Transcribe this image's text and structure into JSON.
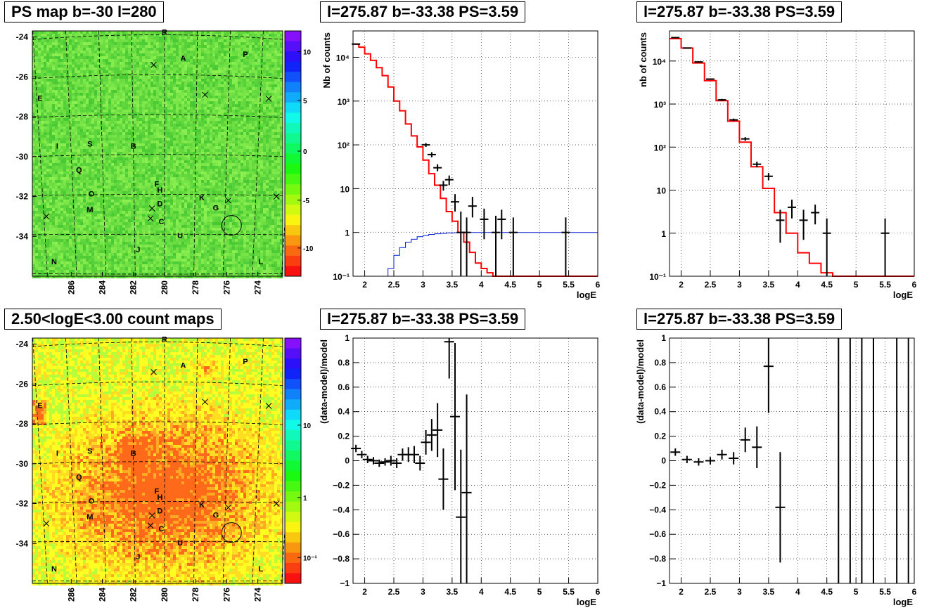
{
  "pads": [
    {
      "title": "PS map b=-30 l=280",
      "kind": "map",
      "palette": "green",
      "y_ticks": [
        "-24",
        "-26",
        "-28",
        "-30",
        "-32",
        "-34"
      ],
      "x_ticks": [
        "286",
        "284",
        "282",
        "280",
        "278",
        "276",
        "274"
      ],
      "colorbar_ticks": [
        "10",
        "5",
        "0",
        "-5",
        "-10"
      ]
    },
    {
      "title": "l=275.87 b=-33.38 PS=3.59",
      "kind": "spectrum",
      "ylabel": "Nb of counts",
      "xlabel": "logE",
      "with_blue_curve": true,
      "data_key": 0
    },
    {
      "title": "l=275.87 b=-33.38 PS=3.59",
      "kind": "spectrum",
      "ylabel": "nb of counts",
      "xlabel": "logE",
      "with_blue_curve": false,
      "data_key": 1
    },
    {
      "title": "2.50<logE<3.00 count maps",
      "kind": "map",
      "palette": "hot",
      "y_ticks": [
        "-24",
        "-26",
        "-28",
        "-30",
        "-32",
        "-34"
      ],
      "x_ticks": [
        "286",
        "284",
        "282",
        "280",
        "278",
        "276",
        "274"
      ],
      "colorbar_ticks": [
        "10",
        "1",
        "10⁻¹"
      ]
    },
    {
      "title": "l=275.87 b=-33.38 PS=3.59",
      "kind": "residual",
      "ylabel": "(data-model)/model",
      "xlabel": "logE",
      "data_key": 2
    },
    {
      "title": "l=275.87 b=-33.38 PS=3.59",
      "kind": "residual",
      "ylabel": "(data-model)/model",
      "xlabel": "logE",
      "data_key": 3
    }
  ],
  "map_labels": [
    {
      "text": "R",
      "l": 280.0,
      "b": -23.9
    },
    {
      "text": "A",
      "l": 278.8,
      "b": -25.2
    },
    {
      "text": "P",
      "l": 274.8,
      "b": -25.0
    },
    {
      "text": "E",
      "l": 288.0,
      "b": -27.2
    },
    {
      "text": "I",
      "l": 286.9,
      "b": -29.6
    },
    {
      "text": "S",
      "l": 284.8,
      "b": -29.5
    },
    {
      "text": "B",
      "l": 282.0,
      "b": -29.6
    },
    {
      "text": "Q",
      "l": 285.5,
      "b": -30.8
    },
    {
      "text": "F",
      "l": 280.5,
      "b": -31.5
    },
    {
      "text": "H",
      "l": 280.3,
      "b": -31.8
    },
    {
      "text": "O",
      "l": 284.7,
      "b": -32.0
    },
    {
      "text": "K",
      "l": 277.6,
      "b": -32.2
    },
    {
      "text": "D",
      "l": 280.3,
      "b": -32.5
    },
    {
      "text": "M",
      "l": 284.8,
      "b": -32.8
    },
    {
      "text": "G",
      "l": 276.7,
      "b": -32.7
    },
    {
      "text": "C",
      "l": 280.2,
      "b": -33.4
    },
    {
      "text": "U",
      "l": 279.0,
      "b": -34.1
    },
    {
      "text": "J",
      "l": 281.7,
      "b": -34.8
    },
    {
      "text": "N",
      "l": 287.1,
      "b": -35.4
    },
    {
      "text": "L",
      "l": 273.8,
      "b": -35.4
    }
  ],
  "map_crosses": [
    {
      "l": 280.7,
      "b": -25.4
    },
    {
      "l": 277.4,
      "b": -26.9
    },
    {
      "l": 273.3,
      "b": -27.1
    },
    {
      "l": 280.8,
      "b": -32.6
    },
    {
      "l": 280.9,
      "b": -33.1
    },
    {
      "l": 275.9,
      "b": -32.2
    },
    {
      "l": 287.6,
      "b": -33.0
    },
    {
      "l": 272.8,
      "b": -32.0
    }
  ],
  "source_circle": {
    "l": 275.87,
    "b": -33.38
  },
  "chart_data": [
    {
      "type": "line",
      "title": "l=275.87 b=-33.38 PS=3.59",
      "xlabel": "logE",
      "ylabel": "Nb of counts",
      "xlim": [
        1.8,
        6
      ],
      "ylim": [
        0.1,
        40000
      ],
      "yscale": "log",
      "grid": true,
      "model_steps": {
        "edges": [
          1.8,
          1.9,
          2.0,
          2.1,
          2.2,
          2.3,
          2.4,
          2.5,
          2.6,
          2.7,
          2.8,
          2.9,
          3.0,
          3.1,
          3.2,
          3.3,
          3.4,
          3.5,
          3.6,
          3.7,
          3.8,
          3.9,
          4.0,
          4.1,
          4.2,
          4.3,
          4.4,
          6.0
        ],
        "values": [
          20000,
          17000,
          12000,
          8500,
          5800,
          3800,
          2100,
          1000,
          600,
          300,
          160,
          90,
          45,
          22,
          12,
          6,
          3,
          1.8,
          1.0,
          0.6,
          0.35,
          0.2,
          0.15,
          0.12,
          0.1,
          0.09,
          0.08
        ]
      },
      "blue_steps": {
        "edges": [
          1.8,
          2.3,
          2.4,
          2.5,
          2.6,
          2.7,
          2.8,
          2.9,
          3.0,
          3.1,
          3.2,
          3.3,
          3.4,
          3.5,
          3.6,
          3.7,
          3.8,
          4.0,
          6.0
        ],
        "values": [
          0.07,
          0.1,
          0.15,
          0.3,
          0.45,
          0.6,
          0.7,
          0.8,
          0.85,
          0.9,
          0.93,
          0.95,
          0.97,
          0.98,
          0.99,
          1.0,
          1.0,
          1.0
        ]
      },
      "points": [
        {
          "x": 1.85,
          "y": 20000,
          "lo": 19500,
          "hi": 20500
        },
        {
          "x": 3.05,
          "y": 100,
          "lo": 90,
          "hi": 110
        },
        {
          "x": 3.15,
          "y": 60,
          "lo": 52,
          "hi": 68
        },
        {
          "x": 3.25,
          "y": 30,
          "lo": 25,
          "hi": 36
        },
        {
          "x": 3.35,
          "y": 12,
          "lo": 9,
          "hi": 15
        },
        {
          "x": 3.45,
          "y": 16,
          "lo": 12,
          "hi": 20
        },
        {
          "x": 3.55,
          "y": 5,
          "lo": 3,
          "hi": 7.5
        },
        {
          "x": 3.65,
          "y": 1,
          "lo": 0.1,
          "hi": 3
        },
        {
          "x": 3.75,
          "y": 1,
          "lo": 0.1,
          "hi": 2.2
        },
        {
          "x": 3.85,
          "y": 4,
          "lo": 2.2,
          "hi": 6.5
        },
        {
          "x": 4.05,
          "y": 2,
          "lo": 0.7,
          "hi": 3.5
        },
        {
          "x": 4.25,
          "y": 1,
          "lo": 0.1,
          "hi": 2.4
        },
        {
          "x": 4.35,
          "y": 2,
          "lo": 0.7,
          "hi": 3.3
        },
        {
          "x": 4.55,
          "y": 1,
          "lo": 0.1,
          "hi": 2.2
        },
        {
          "x": 5.45,
          "y": 1,
          "lo": 0.1,
          "hi": 2.2
        }
      ]
    },
    {
      "type": "line",
      "title": "l=275.87 b=-33.38 PS=3.59",
      "xlabel": "logE",
      "ylabel": "nb of counts",
      "xlim": [
        1.8,
        6
      ],
      "ylim": [
        0.1,
        50000
      ],
      "yscale": "log",
      "grid": true,
      "model_steps": {
        "edges": [
          1.8,
          2.0,
          2.2,
          2.4,
          2.6,
          2.8,
          3.0,
          3.2,
          3.4,
          3.6,
          3.8,
          4.0,
          4.2,
          4.4,
          4.6,
          6.0
        ],
        "values": [
          33000,
          20000,
          9000,
          3500,
          1200,
          400,
          130,
          35,
          11,
          3,
          1,
          0.35,
          0.2,
          0.12,
          0.08
        ]
      },
      "points": [
        {
          "x": 1.9,
          "y": 35000,
          "lo": 34000,
          "hi": 36000
        },
        {
          "x": 2.1,
          "y": 20000,
          "lo": 19500,
          "hi": 20500
        },
        {
          "x": 2.3,
          "y": 9500,
          "lo": 9200,
          "hi": 9800
        },
        {
          "x": 2.5,
          "y": 3800,
          "lo": 3650,
          "hi": 3950
        },
        {
          "x": 2.7,
          "y": 1250,
          "lo": 1180,
          "hi": 1320
        },
        {
          "x": 2.9,
          "y": 430,
          "lo": 400,
          "hi": 460
        },
        {
          "x": 3.1,
          "y": 155,
          "lo": 140,
          "hi": 170
        },
        {
          "x": 3.3,
          "y": 40,
          "lo": 34,
          "hi": 46
        },
        {
          "x": 3.5,
          "y": 21,
          "lo": 17,
          "hi": 25
        },
        {
          "x": 3.7,
          "y": 2,
          "lo": 0.6,
          "hi": 3.5
        },
        {
          "x": 3.9,
          "y": 4,
          "lo": 2.2,
          "hi": 6
        },
        {
          "x": 4.1,
          "y": 2,
          "lo": 0.7,
          "hi": 3.5
        },
        {
          "x": 4.3,
          "y": 3,
          "lo": 1.6,
          "hi": 4.6
        },
        {
          "x": 4.5,
          "y": 1,
          "lo": 0.1,
          "hi": 2.2
        },
        {
          "x": 5.5,
          "y": 1,
          "lo": 0.1,
          "hi": 2.2
        }
      ]
    },
    {
      "type": "scatter",
      "title": "l=275.87 b=-33.38 PS=3.59",
      "xlabel": "logE",
      "ylabel": "(data-model)/model",
      "xlim": [
        1.8,
        6
      ],
      "ylim": [
        -1,
        1
      ],
      "grid": true,
      "points": [
        {
          "x": 1.85,
          "y": 0.1,
          "err": 0.03
        },
        {
          "x": 1.95,
          "y": 0.05,
          "err": 0.03
        },
        {
          "x": 2.05,
          "y": 0.01,
          "err": 0.03
        },
        {
          "x": 2.15,
          "y": 0.0,
          "err": 0.03
        },
        {
          "x": 2.25,
          "y": -0.02,
          "err": 0.03
        },
        {
          "x": 2.35,
          "y": -0.01,
          "err": 0.03
        },
        {
          "x": 2.45,
          "y": 0.0,
          "err": 0.04
        },
        {
          "x": 2.55,
          "y": -0.02,
          "err": 0.04
        },
        {
          "x": 2.65,
          "y": 0.05,
          "err": 0.05
        },
        {
          "x": 2.75,
          "y": 0.05,
          "err": 0.06
        },
        {
          "x": 2.85,
          "y": 0.05,
          "err": 0.07
        },
        {
          "x": 2.95,
          "y": -0.02,
          "err": 0.06
        },
        {
          "x": 3.05,
          "y": 0.15,
          "err": 0.1
        },
        {
          "x": 3.15,
          "y": 0.21,
          "err": 0.13
        },
        {
          "x": 3.25,
          "y": 0.25,
          "err": 0.22
        },
        {
          "x": 3.35,
          "y": -0.15,
          "err": 0.25
        },
        {
          "x": 3.45,
          "y": 0.97,
          "err": 0.3
        },
        {
          "x": 3.55,
          "y": 0.36,
          "err": 0.6
        },
        {
          "x": 3.65,
          "y": -0.46,
          "err": 0.55
        },
        {
          "x": 3.75,
          "y": -0.26,
          "err": 0.8
        }
      ]
    },
    {
      "type": "scatter",
      "title": "l=275.87 b=-33.38 PS=3.59",
      "xlabel": "logE",
      "ylabel": "(data-model)/model",
      "xlim": [
        1.8,
        6
      ],
      "ylim": [
        -1,
        1
      ],
      "grid": true,
      "points": [
        {
          "x": 1.9,
          "y": 0.07,
          "err": 0.03
        },
        {
          "x": 2.1,
          "y": 0.01,
          "err": 0.03
        },
        {
          "x": 2.3,
          "y": -0.01,
          "err": 0.03
        },
        {
          "x": 2.5,
          "y": 0.0,
          "err": 0.03
        },
        {
          "x": 2.7,
          "y": 0.05,
          "err": 0.04
        },
        {
          "x": 2.9,
          "y": 0.02,
          "err": 0.05
        },
        {
          "x": 3.1,
          "y": 0.17,
          "err": 0.1
        },
        {
          "x": 3.3,
          "y": 0.11,
          "err": 0.17
        },
        {
          "x": 3.5,
          "y": 0.77,
          "err": 0.38
        },
        {
          "x": 3.7,
          "y": -0.38,
          "err": 0.45
        },
        {
          "x": 4.7,
          "y": 0,
          "err": 5
        },
        {
          "x": 4.9,
          "y": 0,
          "err": 5
        },
        {
          "x": 5.1,
          "y": 0,
          "err": 5
        },
        {
          "x": 5.3,
          "y": 0,
          "err": 5
        },
        {
          "x": 5.7,
          "y": 0,
          "err": 5
        },
        {
          "x": 5.9,
          "y": 0,
          "err": 5
        }
      ]
    }
  ]
}
